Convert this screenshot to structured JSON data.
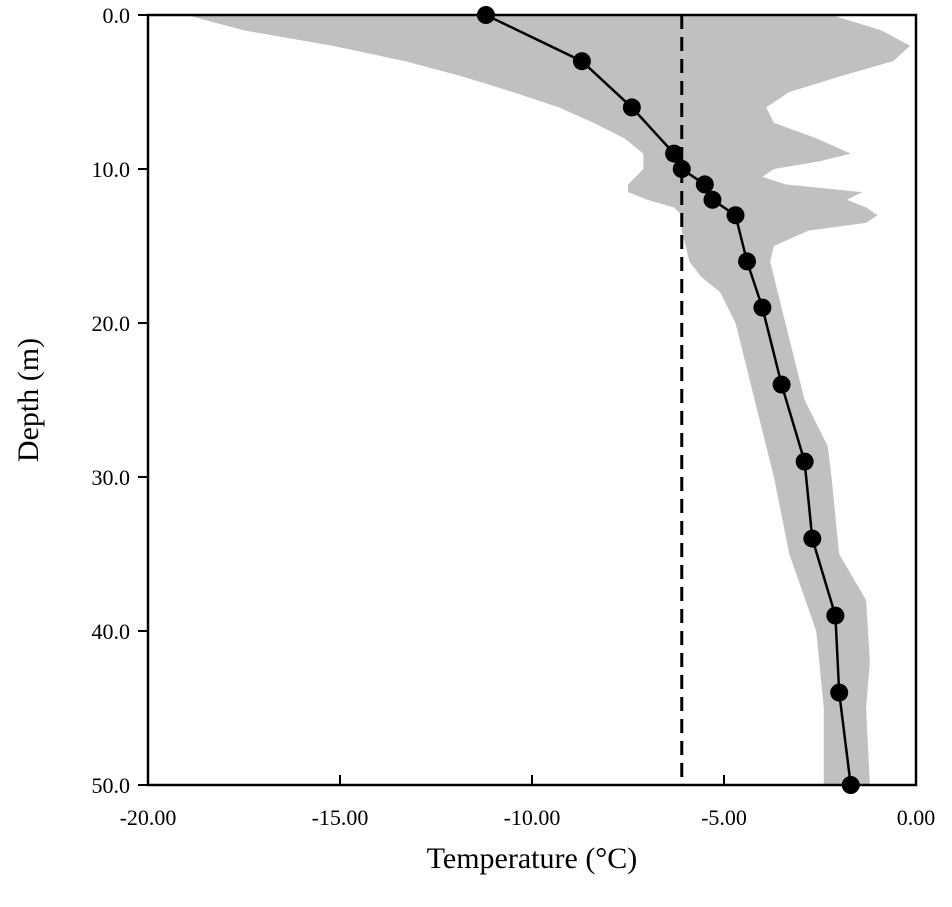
{
  "chart_data": {
    "type": "line",
    "title": "",
    "xlabel": "Temperature (°C)",
    "ylabel": "Depth (m)",
    "xlim": [
      -20,
      0
    ],
    "ylim": [
      0,
      50
    ],
    "y_inverted": true,
    "x_ticks": [
      -20,
      -15,
      -10,
      -5,
      0
    ],
    "x_tick_labels": [
      "-20.00",
      "-15.00",
      "-10.00",
      "-5.00",
      "0.00"
    ],
    "y_ticks": [
      0,
      10,
      20,
      30,
      40,
      50
    ],
    "y_tick_labels": [
      "0.0",
      "10.0",
      "20.0",
      "30.0",
      "40.0",
      "50.0"
    ],
    "grid": false,
    "legend": "none",
    "series": [
      {
        "kind": "line-with-markers",
        "color": "#000000",
        "points": [
          {
            "x": -11.2,
            "y": 0
          },
          {
            "x": -8.7,
            "y": 3
          },
          {
            "x": -7.4,
            "y": 6
          },
          {
            "x": -6.3,
            "y": 9
          },
          {
            "x": -6.1,
            "y": 10
          },
          {
            "x": -5.5,
            "y": 11
          },
          {
            "x": -5.3,
            "y": 12
          },
          {
            "x": -4.7,
            "y": 13
          },
          {
            "x": -4.4,
            "y": 16
          },
          {
            "x": -4.0,
            "y": 19
          },
          {
            "x": -3.5,
            "y": 24
          },
          {
            "x": -2.9,
            "y": 29
          },
          {
            "x": -2.7,
            "y": 34
          },
          {
            "x": -2.1,
            "y": 39
          },
          {
            "x": -2.0,
            "y": 44
          },
          {
            "x": -1.7,
            "y": 50
          }
        ]
      }
    ],
    "range_band": {
      "color": "#c0c0c0",
      "min": [
        {
          "y": 0,
          "x": -19.0
        },
        {
          "y": 1,
          "x": -17.5
        },
        {
          "y": 2,
          "x": -15.2
        },
        {
          "y": 3,
          "x": -13.3
        },
        {
          "y": 4,
          "x": -11.8
        },
        {
          "y": 5,
          "x": -10.5
        },
        {
          "y": 6,
          "x": -9.3
        },
        {
          "y": 7,
          "x": -8.4
        },
        {
          "y": 8,
          "x": -7.6
        },
        {
          "y": 9,
          "x": -7.1
        },
        {
          "y": 10,
          "x": -7.1
        },
        {
          "y": 11,
          "x": -7.5
        },
        {
          "y": 11.5,
          "x": -7.5
        },
        {
          "y": 12,
          "x": -7.0
        },
        {
          "y": 12.5,
          "x": -6.3
        },
        {
          "y": 13,
          "x": -6.1
        },
        {
          "y": 14,
          "x": -6.1
        },
        {
          "y": 15,
          "x": -6.0
        },
        {
          "y": 16,
          "x": -5.9
        },
        {
          "y": 17,
          "x": -5.6
        },
        {
          "y": 18,
          "x": -5.1
        },
        {
          "y": 20,
          "x": -4.7
        },
        {
          "y": 25,
          "x": -4.2
        },
        {
          "y": 30,
          "x": -3.7
        },
        {
          "y": 35,
          "x": -3.3
        },
        {
          "y": 40,
          "x": -2.6
        },
        {
          "y": 45,
          "x": -2.4
        },
        {
          "y": 50,
          "x": -2.4
        }
      ],
      "max": [
        {
          "y": 0,
          "x": -2.2
        },
        {
          "y": 1,
          "x": -0.9
        },
        {
          "y": 2,
          "x": -0.15
        },
        {
          "y": 3,
          "x": -0.6
        },
        {
          "y": 4,
          "x": -2.0
        },
        {
          "y": 5,
          "x": -3.3
        },
        {
          "y": 6,
          "x": -3.9
        },
        {
          "y": 7,
          "x": -3.7
        },
        {
          "y": 8,
          "x": -2.6
        },
        {
          "y": 9,
          "x": -1.7
        },
        {
          "y": 9.5,
          "x": -2.5
        },
        {
          "y": 10,
          "x": -3.7
        },
        {
          "y": 10.5,
          "x": -4.0
        },
        {
          "y": 11,
          "x": -3.4
        },
        {
          "y": 11.5,
          "x": -1.4
        },
        {
          "y": 12,
          "x": -1.8
        },
        {
          "y": 12.5,
          "x": -1.3
        },
        {
          "y": 13,
          "x": -1.0
        },
        {
          "y": 13.5,
          "x": -1.3
        },
        {
          "y": 14,
          "x": -2.8
        },
        {
          "y": 15,
          "x": -3.7
        },
        {
          "y": 16,
          "x": -3.8
        },
        {
          "y": 20,
          "x": -3.4
        },
        {
          "y": 25,
          "x": -2.9
        },
        {
          "y": 28,
          "x": -2.3
        },
        {
          "y": 30,
          "x": -2.2
        },
        {
          "y": 35,
          "x": -2.0
        },
        {
          "y": 38,
          "x": -1.3
        },
        {
          "y": 42,
          "x": -1.2
        },
        {
          "y": 45,
          "x": -1.3
        },
        {
          "y": 50,
          "x": -1.2
        }
      ]
    },
    "reference_line": {
      "x": -6.1,
      "style": "dashed",
      "color": "#000000"
    }
  }
}
